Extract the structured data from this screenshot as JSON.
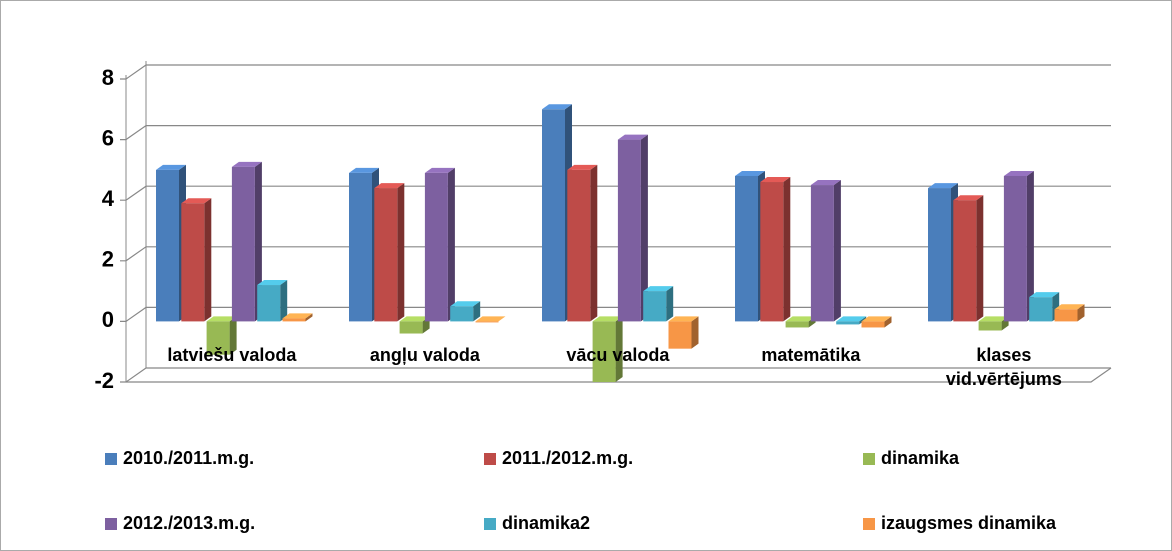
{
  "chart_data": {
    "type": "bar3d",
    "categories": [
      "latviešu valoda",
      "angļu valoda",
      "vācu valoda",
      "matemātika",
      "klases vid.vērtējums"
    ],
    "series": [
      {
        "name": "2010./2011.m.g.",
        "color": "#4a7ebb",
        "values": [
          5.0,
          4.9,
          7.0,
          4.8,
          4.4
        ]
      },
      {
        "name": "2011./2012.m.g.",
        "color": "#be4b48",
        "values": [
          3.9,
          4.4,
          5.0,
          4.6,
          4.0
        ]
      },
      {
        "name": "dinamika",
        "color": "#98b954",
        "values": [
          -1.1,
          -0.4,
          -2.0,
          -0.2,
          -0.3
        ]
      },
      {
        "name": "2012./2013.m.g.",
        "color": "#7d60a0",
        "values": [
          5.1,
          4.9,
          6.0,
          4.5,
          4.8
        ]
      },
      {
        "name": "dinamika2",
        "color": "#46aac5",
        "values": [
          1.2,
          0.5,
          1.0,
          -0.1,
          0.8
        ]
      },
      {
        "name": "izaugsmes dinamika",
        "color": "#f79646",
        "values": [
          0.1,
          0.0,
          -0.9,
          -0.2,
          0.4
        ]
      }
    ],
    "ylim": [
      -2,
      8
    ],
    "yticks": [
      -2,
      0,
      2,
      4,
      6,
      8
    ],
    "grid": true,
    "legend": "bottom"
  }
}
